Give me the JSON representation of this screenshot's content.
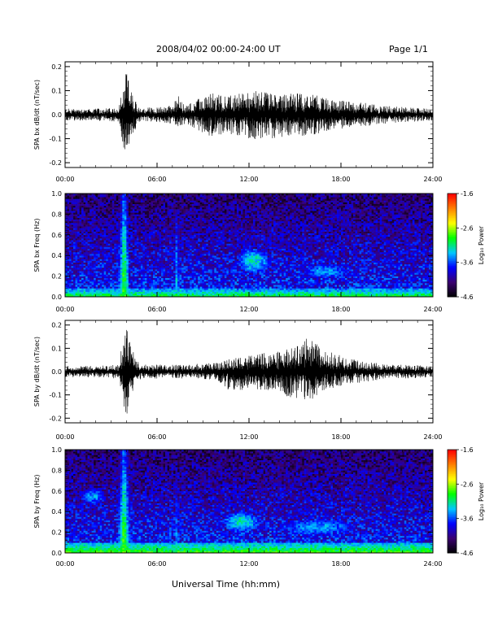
{
  "header": {
    "date_range": "2008/04/02  00:00-24:00 UT",
    "page": "Page 1/1"
  },
  "xlabel": "Universal Time (hh:mm)",
  "colorbar": {
    "label": "Log₁₀ Power",
    "ticks": [
      "-1.6",
      "-2.6",
      "-3.6",
      "-4.6"
    ],
    "range": [
      -4.6,
      -1.6
    ],
    "colors": [
      "#000000",
      "#3a0070",
      "#0000ff",
      "#00c8ff",
      "#00ff00",
      "#ffff00",
      "#ff8000",
      "#ff0000"
    ]
  },
  "chart_data": [
    {
      "type": "line",
      "ylabel": "SPA bx dB/dt (nT/sec)",
      "xlim": [
        0,
        24
      ],
      "ylim": [
        -0.22,
        0.22
      ],
      "x_ticks": [
        "00:00",
        "06:00",
        "12:00",
        "18:00",
        "24:00"
      ],
      "y_ticks": [
        "0.2",
        "0.1",
        "0.0",
        "-0.1",
        "-0.2"
      ],
      "envelope": {
        "x": [
          0,
          2,
          3.5,
          3.8,
          4.0,
          4.3,
          4.6,
          5.0,
          5.5,
          6.0,
          7.0,
          7.4,
          7.8,
          8.5,
          9.5,
          10.5,
          11.5,
          12.5,
          13.5,
          14.5,
          15.5,
          16.5,
          17.5,
          18.5,
          19.5,
          20.5,
          21.5,
          22.5,
          24
        ],
        "upper": [
          0.025,
          0.025,
          0.03,
          0.14,
          0.18,
          0.1,
          0.06,
          0.03,
          0.03,
          0.03,
          0.04,
          0.08,
          0.04,
          0.06,
          0.09,
          0.08,
          0.09,
          0.1,
          0.1,
          0.09,
          0.09,
          0.08,
          0.06,
          0.06,
          0.05,
          0.04,
          0.035,
          0.03,
          0.025
        ],
        "lower": [
          -0.025,
          -0.025,
          -0.03,
          -0.14,
          -0.17,
          -0.1,
          -0.06,
          -0.03,
          -0.03,
          -0.03,
          -0.04,
          -0.05,
          -0.04,
          -0.06,
          -0.09,
          -0.08,
          -0.09,
          -0.11,
          -0.1,
          -0.09,
          -0.09,
          -0.08,
          -0.06,
          -0.06,
          -0.05,
          -0.04,
          -0.035,
          -0.03,
          -0.025
        ]
      }
    },
    {
      "type": "heatmap",
      "ylabel": "SPA bx Freq (Hz)",
      "xlim": [
        0,
        24
      ],
      "ylim": [
        0,
        1.0
      ],
      "x_ticks": [
        "00:00",
        "06:00",
        "12:00",
        "18:00",
        "24:00"
      ],
      "y_ticks": [
        "1.0",
        "0.8",
        "0.6",
        "0.4",
        "0.2",
        "0.0"
      ],
      "zlim": [
        -4.6,
        -1.6
      ],
      "features": [
        {
          "kind": "vertical_band",
          "t": 3.85,
          "width_h": 0.35,
          "fmax": 1.0,
          "level": -2.6
        },
        {
          "kind": "vertical_band",
          "t": 7.3,
          "width_h": 0.15,
          "fmax": 0.8,
          "level": -3.0
        },
        {
          "kind": "blob",
          "t": 12.3,
          "f": 0.35,
          "dt": 1.0,
          "df": 0.12,
          "level": -3.2
        },
        {
          "kind": "blob",
          "t": 17.0,
          "f": 0.25,
          "dt": 1.5,
          "df": 0.07,
          "level": -3.4
        },
        {
          "kind": "low_band",
          "fmax": 0.08,
          "level": -2.9
        }
      ]
    },
    {
      "type": "line",
      "ylabel": "SPA by dB/dt (nT/sec)",
      "xlim": [
        0,
        24
      ],
      "ylim": [
        -0.22,
        0.22
      ],
      "x_ticks": [
        "00:00",
        "06:00",
        "12:00",
        "18:00",
        "24:00"
      ],
      "y_ticks": [
        "0.2",
        "0.1",
        "0.0",
        "-0.1",
        "-0.2"
      ],
      "envelope": {
        "x": [
          0,
          2,
          3.5,
          3.8,
          4.0,
          4.3,
          4.6,
          5.0,
          5.5,
          6.0,
          7.0,
          8.0,
          9.0,
          10.0,
          11.0,
          12.0,
          13.0,
          14.0,
          14.8,
          15.5,
          16.0,
          16.5,
          17.0,
          18.0,
          19.0,
          20.0,
          21.0,
          22.0,
          24
        ],
        "upper": [
          0.025,
          0.025,
          0.03,
          0.15,
          0.2,
          0.12,
          0.06,
          0.03,
          0.03,
          0.03,
          0.03,
          0.03,
          0.035,
          0.04,
          0.06,
          0.07,
          0.08,
          0.09,
          0.1,
          0.12,
          0.17,
          0.11,
          0.09,
          0.07,
          0.05,
          0.04,
          0.03,
          0.03,
          0.025
        ],
        "lower": [
          -0.025,
          -0.025,
          -0.03,
          -0.16,
          -0.2,
          -0.12,
          -0.06,
          -0.03,
          -0.03,
          -0.03,
          -0.03,
          -0.03,
          -0.035,
          -0.04,
          -0.1,
          -0.07,
          -0.08,
          -0.09,
          -0.12,
          -0.11,
          -0.14,
          -0.1,
          -0.08,
          -0.06,
          -0.05,
          -0.04,
          -0.03,
          -0.03,
          -0.025
        ]
      }
    },
    {
      "type": "heatmap",
      "ylabel": "SPA by Freq (Hz)",
      "xlim": [
        0,
        24
      ],
      "ylim": [
        0,
        1.0
      ],
      "x_ticks": [
        "00:00",
        "06:00",
        "12:00",
        "18:00",
        "24:00"
      ],
      "y_ticks": [
        "1.0",
        "0.8",
        "0.6",
        "0.4",
        "0.2",
        "0.0"
      ],
      "zlim": [
        -4.6,
        -1.6
      ],
      "features": [
        {
          "kind": "vertical_band",
          "t": 3.85,
          "width_h": 0.4,
          "fmax": 1.0,
          "level": -2.6
        },
        {
          "kind": "vertical_band",
          "t": 7.3,
          "width_h": 0.15,
          "fmax": 0.8,
          "level": -3.1
        },
        {
          "kind": "blob",
          "t": 1.8,
          "f": 0.55,
          "dt": 0.8,
          "df": 0.08,
          "level": -3.4
        },
        {
          "kind": "blob",
          "t": 11.5,
          "f": 0.3,
          "dt": 1.2,
          "df": 0.1,
          "level": -3.2
        },
        {
          "kind": "blob",
          "t": 16.5,
          "f": 0.25,
          "dt": 2.5,
          "df": 0.08,
          "level": -3.4
        },
        {
          "kind": "low_band",
          "fmax": 0.1,
          "level": -2.8
        }
      ]
    }
  ]
}
